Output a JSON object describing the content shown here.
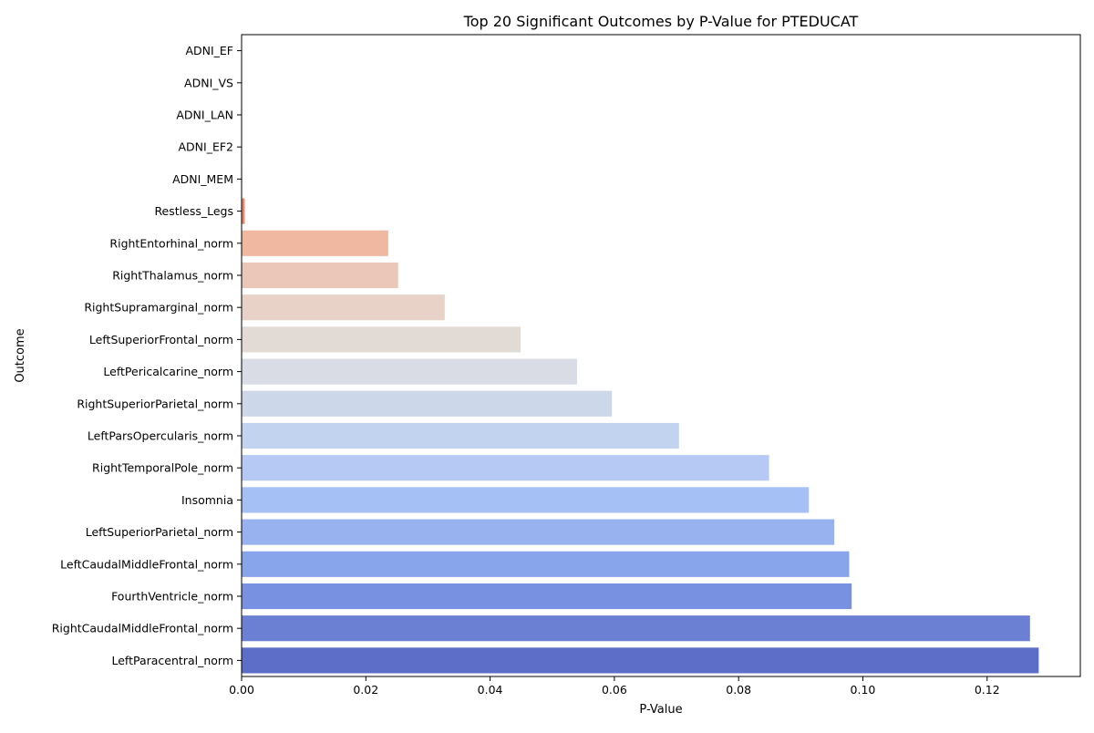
{
  "chart_data": {
    "type": "bar",
    "orientation": "horizontal",
    "title": "Top 20 Significant Outcomes by P-Value for PTEDUCAT",
    "xlabel": "P-Value",
    "ylabel": "Outcome",
    "xlim": [
      0,
      0.135
    ],
    "xticks": [
      0.0,
      0.02,
      0.04,
      0.06,
      0.08,
      0.1,
      0.12
    ],
    "xtick_labels": [
      "0.00",
      "0.02",
      "0.04",
      "0.06",
      "0.08",
      "0.10",
      "0.12"
    ],
    "grid": false,
    "legend": "none",
    "palette": "coolwarm (reversed)",
    "categories": [
      "ADNI_EF",
      "ADNI_VS",
      "ADNI_LAN",
      "ADNI_EF2",
      "ADNI_MEM",
      "Restless_Legs",
      "RightEntorhinal_norm",
      "RightThalamus_norm",
      "RightSupramarginal_norm",
      "LeftSuperiorFrontal_norm",
      "LeftPericalcarine_norm",
      "RightSuperiorParietal_norm",
      "LeftParsOpercularis_norm",
      "RightTemporalPole_norm",
      "Insomnia",
      "LeftSuperiorParietal_norm",
      "LeftCaudalMiddleFrontal_norm",
      "FourthVentricle_norm",
      "RightCaudalMiddleFrontal_norm",
      "LeftParacentral_norm"
    ],
    "values": [
      1e-05,
      2e-05,
      3e-05,
      5e-05,
      8e-05,
      0.0005,
      0.0236,
      0.0252,
      0.0327,
      0.0449,
      0.054,
      0.0596,
      0.0704,
      0.0849,
      0.0913,
      0.0954,
      0.0978,
      0.0982,
      0.1269,
      0.1283
    ],
    "colors": [
      "#b40426",
      "#c0282f",
      "#cc4139",
      "#d75445",
      "#e36b54",
      "#ec8568",
      "#f0b8a0",
      "#ebc7b9",
      "#e8d2c7",
      "#e2dad5",
      "#d9dce5",
      "#ccd8ea",
      "#c2d3f0",
      "#b6c9f4",
      "#a5c0f4",
      "#98b2f0",
      "#88a4eb",
      "#7891e0",
      "#6b80d3",
      "#5c6ec7"
    ]
  }
}
